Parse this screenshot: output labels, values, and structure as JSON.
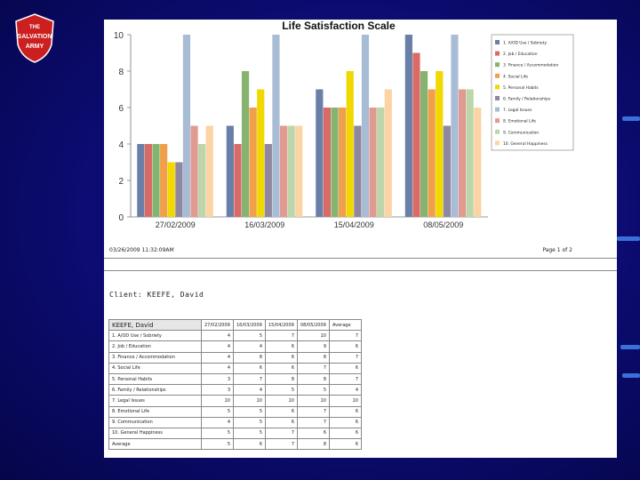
{
  "background_color": "#0d0d7a",
  "logo": {
    "lines": [
      "THE",
      "SALVATION",
      "ARMY"
    ],
    "color": "#cc1f1f"
  },
  "report": {
    "footer_left": "03/26/2009 11:32:09AM",
    "footer_right": "Page 1 of 2",
    "client_label": "Client: KEEFE, David"
  },
  "chart_data": {
    "type": "bar",
    "title": "Life Satisfaction Scale",
    "categories": [
      "27/02/2009",
      "16/03/2009",
      "15/04/2009",
      "08/05/2009"
    ],
    "ylim": [
      0,
      10
    ],
    "yticks": [
      0,
      2,
      4,
      6,
      8,
      10
    ],
    "legend_position": "right",
    "series": [
      {
        "name": "1. A/OD Use / Sobriety",
        "color": "#6a7fa8",
        "values": [
          4,
          5,
          7,
          10
        ]
      },
      {
        "name": "2. Job / Education",
        "color": "#d96b66",
        "values": [
          4,
          4,
          6,
          9
        ]
      },
      {
        "name": "3. Finance / Accommodation",
        "color": "#86b36f",
        "values": [
          4,
          8,
          6,
          8
        ]
      },
      {
        "name": "4. Social Life",
        "color": "#f0a04a",
        "values": [
          4,
          6,
          6,
          7
        ]
      },
      {
        "name": "5. Personal Habits",
        "color": "#f0d800",
        "values": [
          3,
          7,
          8,
          8
        ]
      },
      {
        "name": "6. Family / Relationships",
        "color": "#8f86a0",
        "values": [
          3,
          4,
          5,
          5
        ]
      },
      {
        "name": "7. Legal Issues",
        "color": "#a9bcd6",
        "values": [
          10,
          10,
          10,
          10
        ]
      },
      {
        "name": "8. Emotional Life",
        "color": "#e09a90",
        "values": [
          5,
          5,
          6,
          7
        ]
      },
      {
        "name": "9. Communication",
        "color": "#bcd6aa",
        "values": [
          4,
          5,
          6,
          7
        ]
      },
      {
        "name": "10. General Happiness",
        "color": "#fbd3a4",
        "values": [
          5,
          5,
          7,
          6
        ]
      }
    ]
  },
  "table": {
    "header_name": "KEEFE, David",
    "columns": [
      "27/02/2009",
      "16/03/2009",
      "15/04/2009",
      "08/05/2009",
      "Average"
    ],
    "rows": [
      {
        "label": "1. A/OD Use / Sobriety",
        "values": [
          "4",
          "5",
          "7",
          "10",
          "7"
        ]
      },
      {
        "label": "2. Job / Education",
        "values": [
          "4",
          "4",
          "6",
          "9",
          "6"
        ]
      },
      {
        "label": "3. Finance / Accommodation",
        "values": [
          "4",
          "8",
          "6",
          "8",
          "7"
        ]
      },
      {
        "label": "4. Social Life",
        "values": [
          "4",
          "6",
          "6",
          "7",
          "6"
        ]
      },
      {
        "label": "5. Personal Habits",
        "values": [
          "3",
          "7",
          "8",
          "8",
          "7"
        ]
      },
      {
        "label": "6. Family / Relationships",
        "values": [
          "3",
          "4",
          "5",
          "5",
          "4"
        ]
      },
      {
        "label": "7. Legal Issues",
        "values": [
          "10",
          "10",
          "10",
          "10",
          "10"
        ]
      },
      {
        "label": "8. Emotional Life",
        "values": [
          "5",
          "5",
          "6",
          "7",
          "6"
        ]
      },
      {
        "label": "9. Communication",
        "values": [
          "4",
          "5",
          "6",
          "7",
          "6"
        ]
      },
      {
        "label": "10. General Happiness",
        "values": [
          "5",
          "5",
          "7",
          "6",
          "6"
        ]
      },
      {
        "label": "Average",
        "values": [
          "5",
          "6",
          "7",
          "8",
          "6"
        ]
      }
    ]
  }
}
